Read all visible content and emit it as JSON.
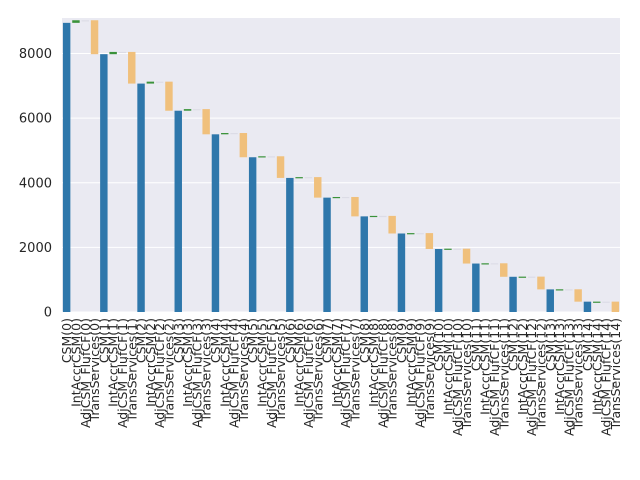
{
  "chart_data": {
    "type": "bar",
    "subtype": "waterfall",
    "title": "",
    "xlabel": "",
    "ylabel": "",
    "ylim": [
      0,
      9100
    ],
    "yticks": [
      0,
      2000,
      4000,
      6000,
      8000
    ],
    "grid": true,
    "legend": "none",
    "categories": [
      "CSM(0)",
      "IntAccrCSM(0)",
      "AdjCSM_FlufCF(0)",
      "TransServices(0)",
      "CSM(1)",
      "IntAccrCSM(1)",
      "AdjCSM_FlufCF(1)",
      "TransServices(1)",
      "CSM(2)",
      "IntAccrCSM(2)",
      "AdjCSM_FlufCF(2)",
      "TransServices(2)",
      "CSM(3)",
      "IntAccrCSM(3)",
      "AdjCSM_FlufCF(3)",
      "TransServices(3)",
      "CSM(4)",
      "IntAccrCSM(4)",
      "AdjCSM_FlufCF(4)",
      "TransServices(4)",
      "CSM(5)",
      "IntAccrCSM(5)",
      "AdjCSM_FlufCF(5)",
      "TransServices(5)",
      "CSM(6)",
      "IntAccrCSM(6)",
      "AdjCSM_FlufCF(6)",
      "TransServices(6)",
      "CSM(7)",
      "IntAccrCSM(7)",
      "AdjCSM_FlufCF(7)",
      "TransServices(7)",
      "CSM(8)",
      "IntAccrCSM(8)",
      "AdjCSM_FlufCF(8)",
      "TransServices(8)",
      "CSM(9)",
      "IntAccrCSM(9)",
      "AdjCSM_FlufCF(9)",
      "TransServices(9)",
      "CSM(10)",
      "IntAccrCSM(10)",
      "AdjCSM_FlufCF(10)",
      "TransServices(10)",
      "CSM(11)",
      "IntAccrCSM(11)",
      "AdjCSM_FlufCF(11)",
      "TransServices(11)",
      "CSM(12)",
      "IntAccrCSM(12)",
      "AdjCSM_FlufCF(12)",
      "TransServices(12)",
      "CSM(13)",
      "IntAccrCSM(13)",
      "AdjCSM_FlufCF(13)",
      "TransServices(13)",
      "CSM(14)",
      "IntAccrCSM(14)",
      "AdjCSM_FlufCF(14)",
      "TransServices(14)"
    ],
    "csm_values": [
      8950,
      7980,
      7070,
      6230,
      5500,
      4790,
      4150,
      3540,
      2960,
      2430,
      1950,
      1500,
      1090,
      700,
      320
    ],
    "int_accr_values": [
      80,
      70,
      60,
      50,
      40,
      30,
      25,
      20,
      15,
      12,
      10,
      8,
      5,
      3,
      1
    ],
    "adj_flufcf_values": [
      0,
      0,
      0,
      0,
      0,
      0,
      0,
      0,
      0,
      0,
      0,
      0,
      0,
      0,
      0
    ],
    "trans_services_values": [
      -1050,
      -980,
      -900,
      -780,
      -750,
      -670,
      -635,
      -600,
      -545,
      -492,
      -460,
      -418,
      -395,
      -383,
      -321
    ],
    "colors": {
      "csm": "#2e77ab",
      "increase": "#3a923a",
      "decrease": "#f0c07c",
      "zero": "#dcdce6",
      "plot_bg": "#eaeaf2",
      "grid": "#ffffff",
      "text": "#262626"
    }
  }
}
